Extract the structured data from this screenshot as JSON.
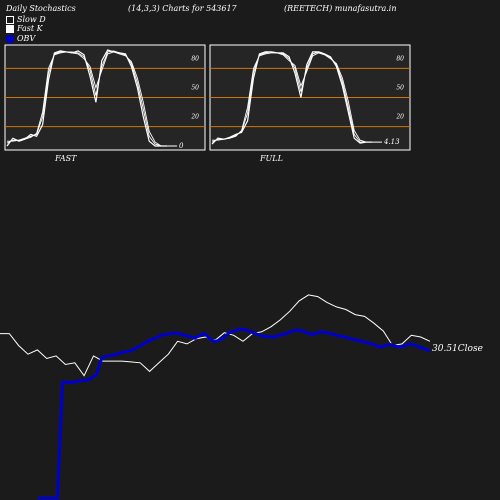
{
  "header": {
    "left": "Daily Stochastics",
    "mid": "(14,3,3) Charts for 543617",
    "right": "(REETECH) munafasutra.in"
  },
  "legend": [
    {
      "label": "Slow  D",
      "color": "#1b1b1b"
    },
    {
      "label": "Fast K",
      "color": "#ffffff"
    },
    {
      "label": "OBV",
      "color": "#0000cc"
    }
  ],
  "colors": {
    "background": "#1b1b1b",
    "pane_background": "#252525",
    "level_line": "#cc7700",
    "price_line": "#ffffff",
    "obv_line": "#0000cc"
  },
  "chart_data": [
    {
      "type": "line",
      "title": "FAST",
      "ylim": [
        0,
        100
      ],
      "levels": [
        80,
        50,
        20
      ],
      "tick_labels": [
        "80",
        "50",
        "20"
      ],
      "last_value_label": "0",
      "series": [
        {
          "values": [
            0,
            8,
            5,
            7,
            12,
            10,
            22,
            68,
            96,
            98,
            97,
            96,
            98,
            94,
            72,
            45,
            88,
            99,
            97,
            96,
            95,
            82,
            60,
            30,
            5,
            0,
            0,
            0
          ]
        },
        {
          "values": [
            3,
            6,
            6,
            8,
            10,
            12,
            30,
            75,
            95,
            97,
            97,
            97,
            96,
            92,
            78,
            52,
            82,
            97,
            98,
            96,
            94,
            85,
            65,
            38,
            10,
            2,
            0,
            0
          ]
        },
        {
          "values": [
            5,
            5,
            6,
            7,
            9,
            13,
            35,
            80,
            94,
            96,
            97,
            96,
            95,
            90,
            82,
            60,
            78,
            95,
            97,
            95,
            93,
            87,
            70,
            45,
            15,
            4,
            0,
            0
          ]
        }
      ]
    },
    {
      "type": "line",
      "title": "FULL",
      "ylim": [
        0,
        100
      ],
      "levels": [
        80,
        50,
        20
      ],
      "tick_labels": [
        "80",
        "50",
        "20"
      ],
      "last_value_label": "4.13",
      "series": [
        {
          "values": [
            2,
            8,
            7,
            9,
            12,
            14,
            26,
            70,
            95,
            97,
            97,
            96,
            96,
            92,
            75,
            50,
            84,
            97,
            97,
            95,
            92,
            82,
            62,
            35,
            8,
            3,
            4,
            4
          ]
        },
        {
          "values": [
            4,
            7,
            7,
            8,
            11,
            15,
            34,
            76,
            94,
            96,
            97,
            96,
            95,
            90,
            80,
            56,
            80,
            95,
            97,
            95,
            91,
            84,
            66,
            40,
            12,
            4,
            4,
            4
          ]
        },
        {
          "values": [
            6,
            6,
            7,
            8,
            10,
            16,
            40,
            80,
            93,
            95,
            96,
            96,
            94,
            88,
            83,
            62,
            77,
            93,
            96,
            94,
            90,
            85,
            70,
            46,
            16,
            6,
            4,
            4
          ]
        }
      ]
    },
    {
      "type": "line",
      "title": "",
      "last_value_label": "30.51Close",
      "series": [
        {
          "values": [
            54,
            54,
            40,
            30,
            35,
            25,
            28,
            18,
            20,
            5,
            28,
            22,
            22,
            22,
            21,
            20,
            10,
            20,
            30,
            45,
            42,
            48,
            50,
            46,
            55,
            52,
            45,
            54,
            56,
            62,
            70,
            80,
            92,
            99,
            97,
            90,
            85,
            82,
            76,
            74,
            66,
            57,
            40,
            42,
            52,
            50,
            45
          ]
        },
        {
          "values": [
            -1000,
            -1000,
            -1000,
            -1000,
            -1000,
            3,
            3,
            3,
            4,
            5,
            5,
            8,
            12,
            30,
            32,
            33,
            34,
            36,
            37,
            38,
            41,
            44,
            47,
            50,
            52,
            55,
            56,
            57,
            58,
            57,
            55,
            54,
            52,
            55,
            57,
            52,
            48,
            50,
            53,
            58,
            60,
            62,
            62,
            60,
            58,
            56,
            54,
            54,
            53,
            55,
            56,
            58,
            60,
            61,
            60,
            58,
            56,
            58,
            59,
            58,
            57,
            55,
            54,
            53,
            51,
            50,
            49,
            47,
            46,
            44,
            42,
            44,
            45,
            43,
            42,
            44,
            46,
            44,
            42,
            40,
            38
          ]
        }
      ]
    }
  ]
}
